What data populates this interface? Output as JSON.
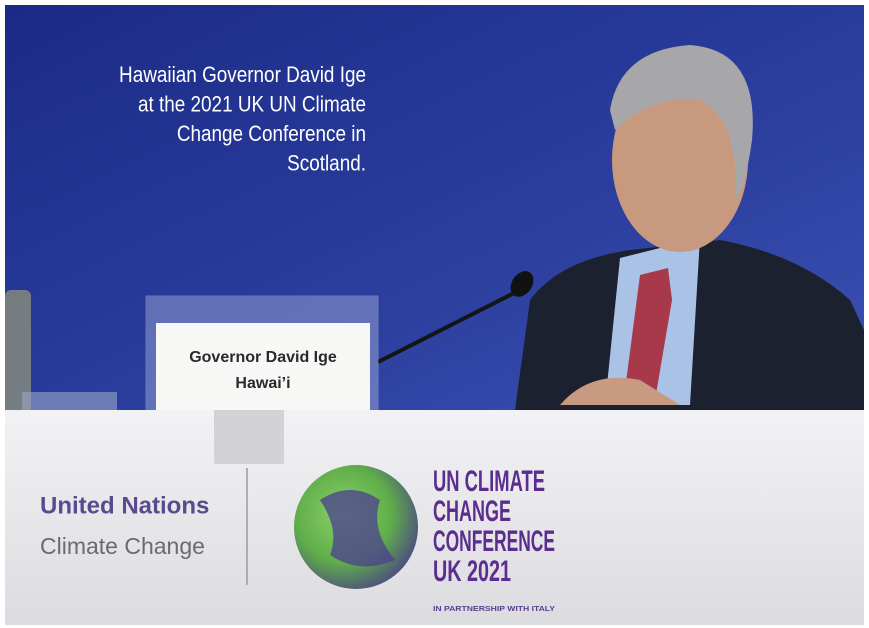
{
  "caption": {
    "lines": [
      "Hawaiian Governor David Ige",
      "at the 2021 UK UN Climate",
      "Change Conference in",
      "Scotland."
    ]
  },
  "name_card": {
    "name": "Governor David Ige",
    "place": "Hawai’i"
  },
  "desk": {
    "org_name": "United Nations",
    "org_subtitle": "Climate Change",
    "conference_title": {
      "lines": [
        "UN CLIMATE",
        "CHANGE",
        "CONFERENCE",
        "UK 2021"
      ]
    },
    "partnership": "IN PARTNERSHIP WITH ITALY"
  }
}
